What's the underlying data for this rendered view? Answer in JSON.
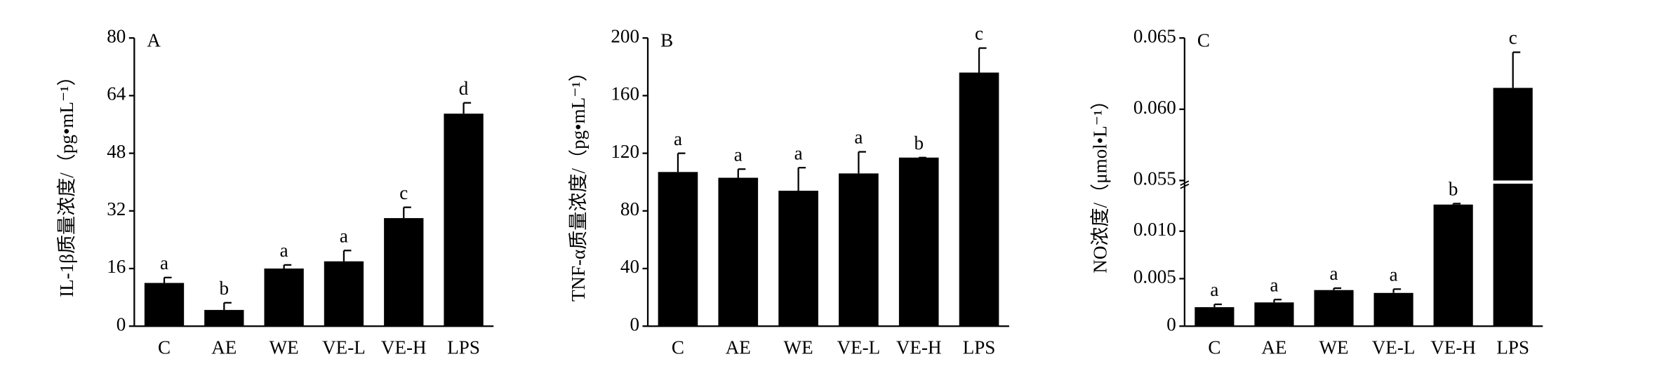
{
  "chart_data": [
    {
      "type": "bar",
      "panel": "A",
      "ylabel": "IL-1β质量浓度/（pg•mL⁻¹）",
      "categories": [
        "C",
        "AE",
        "WE",
        "VE-L",
        "VE-H",
        "LPS"
      ],
      "values": [
        12,
        4.5,
        16,
        18,
        30,
        59
      ],
      "errors": [
        1.5,
        2,
        1,
        3,
        3,
        3
      ],
      "annotations": [
        "a",
        "b",
        "a",
        "a",
        "c",
        "d"
      ],
      "color": "#000000",
      "ylim": [
        0,
        80
      ],
      "yticks": [
        0,
        16,
        32,
        48,
        64,
        80
      ]
    },
    {
      "type": "bar",
      "panel": "B",
      "ylabel": "TNF-α质量浓度/（pg•mL⁻¹）",
      "categories": [
        "C",
        "AE",
        "WE",
        "VE-L",
        "VE-H",
        "LPS"
      ],
      "values": [
        107,
        103,
        94,
        106,
        117,
        176
      ],
      "errors": [
        13,
        6,
        16,
        15,
        0,
        17
      ],
      "annotations": [
        "a",
        "a",
        "a",
        "a",
        "b",
        "c"
      ],
      "color": "#000000",
      "ylim": [
        0,
        200
      ],
      "yticks": [
        0,
        40,
        80,
        120,
        160,
        200
      ]
    },
    {
      "type": "bar",
      "panel": "C",
      "ylabel": "NO浓度/（μmol•L⁻¹）",
      "categories": [
        "C",
        "AE",
        "WE",
        "VE-L",
        "VE-H",
        "LPS"
      ],
      "values": [
        0.002,
        0.0025,
        0.0038,
        0.0035,
        0.0128,
        0.0615
      ],
      "errors": [
        0.0003,
        0.0003,
        0.0002,
        0.0004,
        0.0001,
        0.0025
      ],
      "annotations": [
        "a",
        "a",
        "a",
        "a",
        "b",
        "c"
      ],
      "color": "#000000",
      "ylim": [
        0,
        0.065
      ],
      "ybreak": [
        0.015,
        0.055
      ],
      "yticks": [
        0,
        0.005,
        {
          "value": 0.01,
          "label": "0.010"
        },
        0.055,
        {
          "value": 0.06,
          "label": "0.060"
        },
        0.065
      ]
    }
  ]
}
